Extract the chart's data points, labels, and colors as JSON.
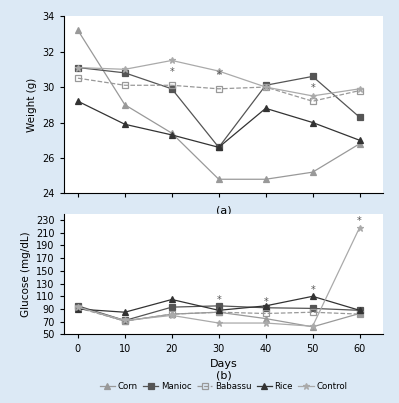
{
  "days": [
    0,
    10,
    20,
    30,
    40,
    50,
    60
  ],
  "weight": {
    "Corn": [
      33.2,
      29.0,
      27.4,
      24.8,
      24.8,
      25.2,
      26.8
    ],
    "Manioc": [
      31.1,
      30.8,
      29.9,
      26.6,
      30.1,
      30.6,
      28.3
    ],
    "Babassu": [
      30.5,
      30.1,
      30.1,
      29.9,
      30.0,
      29.2,
      29.8
    ],
    "Rice": [
      29.2,
      27.9,
      27.3,
      26.6,
      28.8,
      28.0,
      27.0
    ],
    "Control": [
      31.1,
      31.0,
      31.5,
      30.9,
      30.0,
      29.5,
      29.9
    ]
  },
  "weight_starred": {
    "Corn": [
      false,
      false,
      false,
      false,
      false,
      false,
      false
    ],
    "Manioc": [
      false,
      false,
      false,
      false,
      false,
      false,
      false
    ],
    "Babassu": [
      false,
      false,
      true,
      true,
      false,
      true,
      false
    ],
    "Rice": [
      false,
      false,
      false,
      false,
      false,
      false,
      false
    ],
    "Control": [
      false,
      false,
      false,
      false,
      false,
      false,
      false
    ]
  },
  "glucose": {
    "Corn": [
      93,
      71,
      82,
      85,
      75,
      62,
      83
    ],
    "Manioc": [
      95,
      72,
      93,
      95,
      92,
      91,
      88
    ],
    "Babassu": [
      92,
      71,
      82,
      85,
      83,
      85,
      82
    ],
    "Rice": [
      90,
      85,
      105,
      88,
      95,
      110,
      88
    ],
    "Control": [
      93,
      72,
      80,
      68,
      68,
      63,
      218
    ]
  },
  "glucose_starred": {
    "Corn": [
      false,
      false,
      false,
      false,
      false,
      false,
      false
    ],
    "Manioc": [
      false,
      false,
      false,
      true,
      true,
      false,
      false
    ],
    "Babassu": [
      false,
      false,
      false,
      false,
      false,
      false,
      false
    ],
    "Rice": [
      false,
      false,
      false,
      false,
      false,
      true,
      false
    ],
    "Control": [
      false,
      false,
      false,
      false,
      false,
      false,
      true
    ]
  },
  "series_styles": {
    "Corn": {
      "color": "#999999",
      "marker": "^",
      "linestyle": "-",
      "fillstyle": "full"
    },
    "Manioc": {
      "color": "#555555",
      "marker": "s",
      "linestyle": "-",
      "fillstyle": "full"
    },
    "Babassu": {
      "color": "#999999",
      "marker": "s",
      "linestyle": "--",
      "fillstyle": "none"
    },
    "Rice": {
      "color": "#333333",
      "marker": "^",
      "linestyle": "-",
      "fillstyle": "full"
    },
    "Control": {
      "color": "#aaaaaa",
      "marker": "*",
      "linestyle": "-",
      "fillstyle": "full"
    }
  },
  "weight_ylim": [
    24,
    34
  ],
  "weight_yticks": [
    24,
    26,
    28,
    30,
    32,
    34
  ],
  "glucose_ylim": [
    50,
    240
  ],
  "glucose_yticks": [
    50,
    70,
    90,
    110,
    130,
    150,
    170,
    190,
    210,
    230
  ],
  "xlabel": "Days",
  "ylabel_weight": "Weight (g)",
  "ylabel_glucose": "Glucose (mg/dL)",
  "label_a": "(a)",
  "label_b": "(b)",
  "bg_color": "#dce9f5",
  "plot_bg": "#ffffff"
}
